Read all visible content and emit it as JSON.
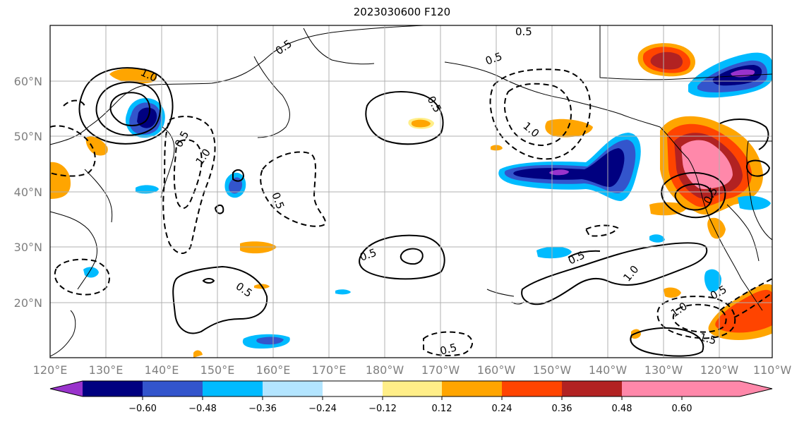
{
  "title": "2023030600 F120",
  "map": {
    "lat_ticks": [
      "60°N",
      "50°N",
      "40°N",
      "30°N",
      "20°N"
    ],
    "lon_ticks": [
      "120°E",
      "130°E",
      "140°E",
      "150°E",
      "160°E",
      "170°E",
      "180°W",
      "170°W",
      "160°W",
      "150°W",
      "140°W",
      "130°W",
      "120°W",
      "110°W"
    ],
    "contour_labels": [
      "0.5",
      "1.0",
      "0.5",
      "0.5",
      "1.0",
      "0.5",
      "0.5",
      "1.0",
      "0.5",
      "0.5",
      "0.5",
      "0.5",
      "1.0",
      "0.5",
      "1.0",
      "0.5",
      "1.5",
      "0.5"
    ]
  },
  "colorbar": {
    "colors": [
      "#9933cc",
      "#000080",
      "#3355cc",
      "#00bbff",
      "#b3e5ff",
      "#ffffff",
      "#ffee88",
      "#ffa500",
      "#ff4400",
      "#b22222",
      "#ff88aa"
    ],
    "tick_labels": [
      "−0.60",
      "−0.48",
      "−0.36",
      "−0.24",
      "−0.12",
      "0.12",
      "0.24",
      "0.36",
      "0.48",
      "0.60"
    ]
  }
}
